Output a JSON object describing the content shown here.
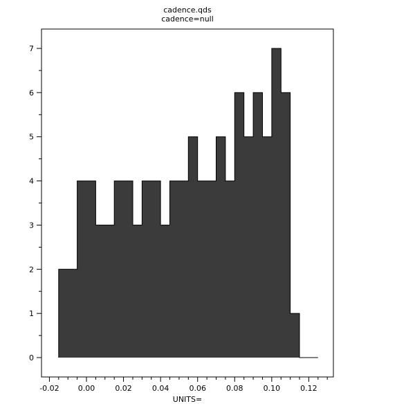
{
  "window": {
    "background": "#ffffff",
    "text_color": "#000000"
  },
  "chart_data": {
    "type": "bar",
    "subtype": "histogram",
    "title": "cadence.qds",
    "subtitle": "cadence=null",
    "xlabel": "UNITS=",
    "ylabel": "",
    "bin_start": -0.015,
    "bin_width": 0.005,
    "counts": [
      2,
      2,
      4,
      4,
      3,
      3,
      4,
      4,
      3,
      4,
      4,
      3,
      4,
      4,
      5,
      4,
      4,
      5,
      4,
      6,
      5,
      6,
      5,
      7,
      6,
      1,
      0,
      0
    ],
    "xlim": [
      -0.0243,
      0.1333
    ],
    "ylim": [
      -0.44,
      7.44
    ],
    "y_major_ticks": [
      0,
      1,
      2,
      3,
      4,
      5,
      6,
      7
    ],
    "y_tick_labels": [
      "0",
      "1",
      "2",
      "3",
      "4",
      "5",
      "6",
      "7"
    ],
    "y_minor_step": 0.5,
    "x_major_ticks": [
      -0.02,
      0.0,
      0.02,
      0.04,
      0.06,
      0.08,
      0.1,
      0.12
    ],
    "x_tick_labels": [
      "-0.02",
      "0.00",
      "0.02",
      "0.04",
      "0.06",
      "0.08",
      "0.10",
      "0.12"
    ],
    "x_minor_step": 0.005,
    "grid": false,
    "legend": "none",
    "bar_fill": "#3b3b3b",
    "bar_stroke": "#000000",
    "axis_color": "#000000"
  }
}
